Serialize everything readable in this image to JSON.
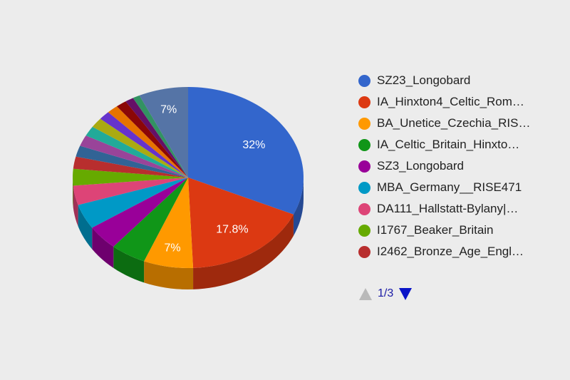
{
  "chart_data": {
    "type": "pie",
    "style": "3d",
    "legend_position": "right",
    "slices": [
      {
        "label": "SZ23_Longobard",
        "value": 32,
        "color": "#3366cc",
        "value_label": "32%"
      },
      {
        "label": "IA_Hinxton4_Celtic_Rom…",
        "value": 17.8,
        "color": "#dc3912",
        "value_label": "17.8%"
      },
      {
        "label": "BA_Unetice_Czechia_RIS…",
        "value": 7,
        "color": "#ff9900",
        "value_label": "7%"
      },
      {
        "label": "IA_Celtic_Britain_Hinxto…",
        "value": 5,
        "color": "#109618",
        "value_label": ""
      },
      {
        "label": "SZ3_Longobard",
        "value": 4.5,
        "color": "#990099",
        "value_label": ""
      },
      {
        "label": "MBA_Germany__RISE471",
        "value": 4.5,
        "color": "#0099c6",
        "value_label": ""
      },
      {
        "label": "DA111_Hallstatt-Bylany|…",
        "value": 3.5,
        "color": "#dd4477",
        "value_label": ""
      },
      {
        "label": "I1767_Beaker_Britain",
        "value": 3,
        "color": "#66aa00",
        "value_label": ""
      },
      {
        "label": "I2462_Bronze_Age_Engl…",
        "value": 2.2,
        "color": "#b82e2e",
        "value_label": ""
      },
      {
        "label": "",
        "value": 2,
        "color": "#316395",
        "value_label": ""
      },
      {
        "label": "",
        "value": 2,
        "color": "#994499",
        "value_label": ""
      },
      {
        "label": "",
        "value": 1.8,
        "color": "#22aa99",
        "value_label": ""
      },
      {
        "label": "",
        "value": 1.8,
        "color": "#aaaa11",
        "value_label": ""
      },
      {
        "label": "",
        "value": 1.6,
        "color": "#6633cc",
        "value_label": ""
      },
      {
        "label": "",
        "value": 1.6,
        "color": "#e67300",
        "value_label": ""
      },
      {
        "label": "",
        "value": 1.5,
        "color": "#8b0707",
        "value_label": ""
      },
      {
        "label": "",
        "value": 1.2,
        "color": "#651067",
        "value_label": ""
      },
      {
        "label": "",
        "value": 1,
        "color": "#329262",
        "value_label": ""
      },
      {
        "label": "",
        "value": 7,
        "color": "#5574a6",
        "value_label": "7%"
      }
    ],
    "legend_visible_count": 9
  },
  "pager": {
    "text": "1/3",
    "prev_icon": "triangle-up-icon",
    "next_icon": "triangle-down-icon"
  }
}
